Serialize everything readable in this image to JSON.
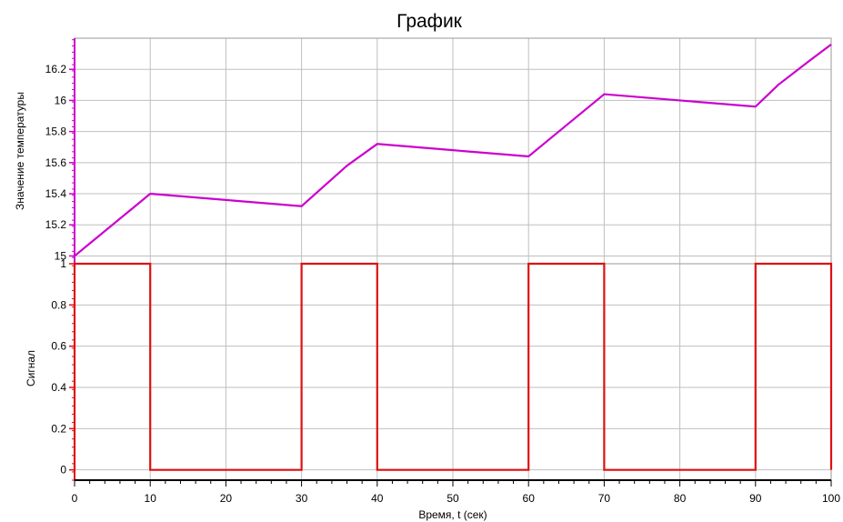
{
  "chart_data": [
    {
      "type": "line",
      "title": "График",
      "ylabel": "Значение температуры",
      "xlim": [
        0,
        100
      ],
      "ylim": [
        14.95,
        16.4
      ],
      "yticks": [
        15,
        15.2,
        15.4,
        15.6,
        15.8,
        16,
        16.2
      ],
      "ytick_labels": [
        "15",
        "15.2",
        "15.4",
        "15.6",
        "15.8",
        "16",
        "16.2"
      ],
      "xticks": [
        0,
        10,
        20,
        30,
        40,
        50,
        60,
        70,
        80,
        90,
        100
      ],
      "grid": true,
      "line_color": "#cc00cc",
      "axis_color": "#cc00cc",
      "x": [
        0,
        2,
        5,
        8,
        10,
        20,
        30,
        33,
        36,
        40,
        50,
        60,
        63,
        66,
        70,
        80,
        90,
        93,
        97,
        100
      ],
      "y": [
        15.0,
        15.08,
        15.2,
        15.32,
        15.4,
        15.36,
        15.32,
        15.45,
        15.58,
        15.72,
        15.68,
        15.64,
        15.76,
        15.88,
        16.04,
        16.0,
        15.96,
        16.1,
        16.25,
        16.36
      ]
    },
    {
      "type": "line",
      "xlabel": "Время, t (сек)",
      "ylabel": "Сигнал",
      "xlim": [
        0,
        100
      ],
      "ylim": [
        -0.05,
        1.0
      ],
      "yticks": [
        0,
        0.2,
        0.4,
        0.6,
        0.8,
        1
      ],
      "ytick_labels": [
        "0",
        "0.2",
        "0.4",
        "0.6",
        "0.8",
        "1"
      ],
      "xticks": [
        0,
        10,
        20,
        30,
        40,
        50,
        60,
        70,
        80,
        90,
        100
      ],
      "xtick_labels": [
        "0",
        "10",
        "20",
        "30",
        "40",
        "50",
        "60",
        "70",
        "80",
        "90",
        "100"
      ],
      "grid": true,
      "line_color": "#dd1111",
      "axis_color": "#dd1111",
      "x": [
        0,
        0,
        10,
        10,
        30,
        30,
        40,
        40,
        60,
        60,
        70,
        70,
        90,
        90,
        100,
        100
      ],
      "y": [
        0,
        1,
        1,
        0,
        0,
        1,
        1,
        0,
        0,
        1,
        1,
        0,
        0,
        1,
        1,
        0
      ]
    }
  ]
}
